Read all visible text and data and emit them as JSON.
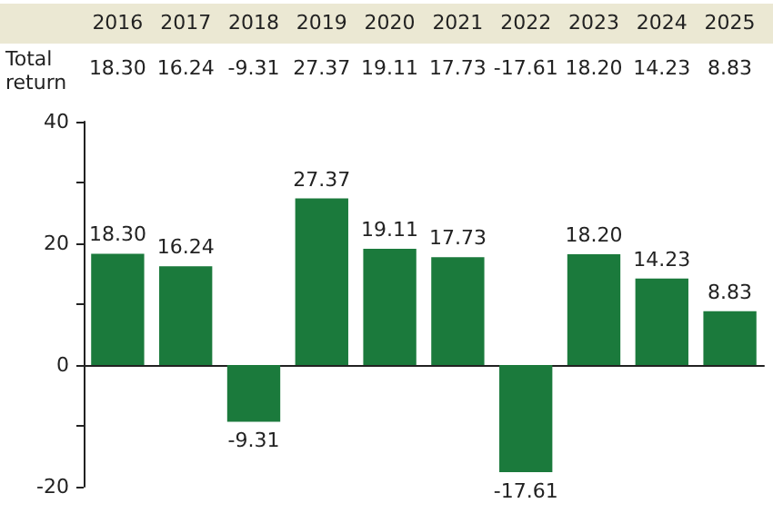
{
  "chart_data": {
    "type": "bar",
    "categories": [
      "2016",
      "2017",
      "2018",
      "2019",
      "2020",
      "2021",
      "2022",
      "2023",
      "2024",
      "2025"
    ],
    "values": [
      18.3,
      16.24,
      -9.31,
      27.37,
      19.11,
      17.73,
      -17.61,
      18.2,
      14.23,
      8.83
    ],
    "value_labels": [
      "18.30",
      "16.24",
      "-9.31",
      "27.37",
      "19.11",
      "17.73",
      "-17.61",
      "18.20",
      "14.23",
      "8.83"
    ],
    "color": "#1b7a3c",
    "ylim": [
      -20,
      40
    ],
    "yticks": [
      -20,
      {
        "value": -10,
        "label": null
      },
      0,
      {
        "value": 10,
        "label": null
      },
      20,
      {
        "value": 30,
        "label": null
      },
      40
    ],
    "annotations": [
      "Total return"
    ],
    "tick_labels": "y"
  }
}
